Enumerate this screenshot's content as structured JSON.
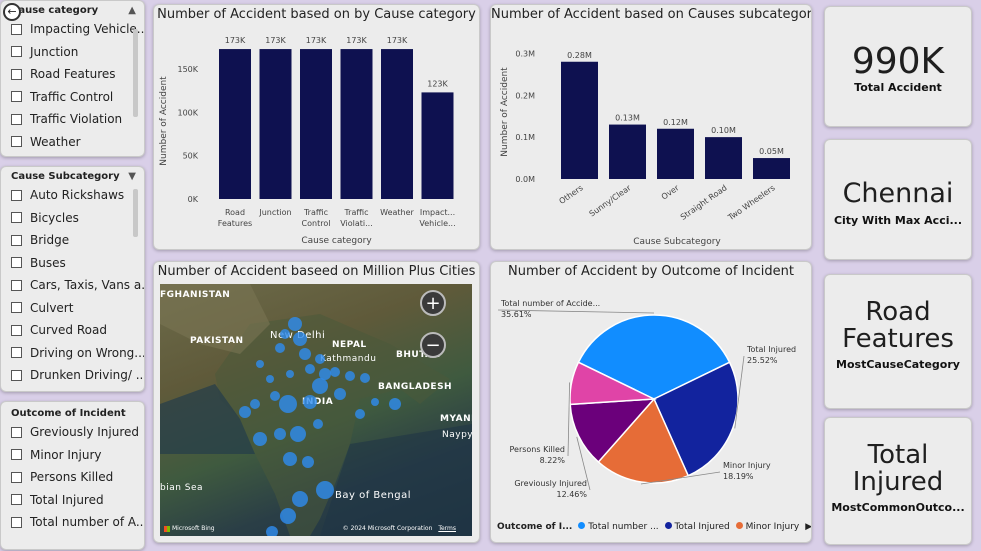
{
  "slicers": {
    "cause_category": {
      "title": "Cause category",
      "items": [
        "Impacting Vehicle...",
        "Junction",
        "Road Features",
        "Traffic Control",
        "Traffic Violation",
        "Weather"
      ]
    },
    "cause_subcategory": {
      "title": "Cause Subcategory",
      "items": [
        "Auto Rickshaws",
        "Bicycles",
        "Bridge",
        "Buses",
        "Cars, Taxis, Vans a...",
        "Culvert",
        "Curved Road",
        "Driving on Wrong...",
        "Drunken Driving/ ..."
      ]
    },
    "outcome": {
      "title": "Outcome of Incident",
      "items": [
        "Greviously Injured",
        "Minor Injury",
        "Persons Killed",
        "Total Injured",
        "Total number of A..."
      ]
    }
  },
  "bar1": {
    "title": "Number of Accident based on by Cause category",
    "xlabel": "Cause category",
    "ylabel": "Number of Accident",
    "yticks": [
      "0K",
      "50K",
      "100K",
      "150K"
    ],
    "cat_lines": [
      [
        "Road",
        "Features"
      ],
      [
        "Junction"
      ],
      [
        "Traffic",
        "Control"
      ],
      [
        "Traffic",
        "Violati..."
      ],
      [
        "Weather"
      ],
      [
        "Impact...",
        "Vehicle..."
      ]
    ]
  },
  "bar2": {
    "title": "Number of Accident based on Causes subcategory",
    "xlabel": "Cause Subcategory",
    "ylabel": "Number of Accident",
    "yticks": [
      "0.0M",
      "0.1M",
      "0.2M",
      "0.3M"
    ]
  },
  "map": {
    "title": "Number of Accident baseed on Million Plus Cities",
    "labels": {
      "afghanistan": "FGHANISTAN",
      "pakistan": "PAKISTAN",
      "delhi": "New Delhi",
      "nepal": "NEPAL",
      "kathmandu": "Kathmandu",
      "bhutan": "BHUTAN",
      "bangladesh": "BANGLADESH",
      "india": "INDIA",
      "myanmar": "MYANM",
      "naypyidaw": "Naypyid",
      "arabian": "bian Sea",
      "bengal": "Bay of Bengal"
    },
    "zoom_in": "+",
    "zoom_out": "−",
    "brand": "Microsoft Bing",
    "copyright": "© 2024 Microsoft Corporation",
    "terms": "Terms"
  },
  "pie": {
    "title": "Number of Accident by Outcome of Incident",
    "legend_title": "Outcome of I...",
    "legend_items": [
      "Total number ...",
      "Total Injured",
      "Minor Injury"
    ],
    "legend_more": "▶",
    "label_lines": {
      "total_number": [
        "Total number of Accide...",
        "35.61%"
      ],
      "total_injured": [
        "Total Injured",
        "25.52%"
      ],
      "minor": [
        "Minor Injury",
        "18.19%"
      ],
      "grevious": [
        "Greviously Injured",
        "12.46%"
      ],
      "killed": [
        "Persons Killed",
        "8.22%"
      ]
    }
  },
  "kpis": [
    {
      "value": "990K",
      "label": "Total Accident"
    },
    {
      "value": "Chennai",
      "label": "City With Max Acci..."
    },
    {
      "value": "Road Features",
      "label": "MostCauseCategory"
    },
    {
      "value": "Total Injured",
      "label": "MostCommonOutco..."
    }
  ],
  "colors": {
    "bar": "#0e1150",
    "pie_total_number": "#118dff",
    "pie_total_injured": "#12239e",
    "pie_minor": "#e66c37",
    "pie_grevious": "#6b007b",
    "pie_killed": "#e044a7",
    "map_bubble": "#2e8cf0"
  },
  "chart_data": [
    {
      "type": "bar",
      "title": "Number of Accident based on by Cause category",
      "categories": [
        "Road Features",
        "Junction",
        "Traffic Control",
        "Traffic Violati...",
        "Weather",
        "Impact... Vehicle..."
      ],
      "values": [
        173000,
        173000,
        173000,
        173000,
        173000,
        123000
      ],
      "data_labels": [
        "173K",
        "173K",
        "173K",
        "173K",
        "173K",
        "123K"
      ],
      "xlabel": "Cause category",
      "ylabel": "Number of Accident",
      "ylim": [
        0,
        180000
      ]
    },
    {
      "type": "bar",
      "title": "Number of Accident based on Causes subcategory",
      "categories": [
        "Others",
        "Sunny/Clear",
        "Over",
        "Straight Road",
        "Two Wheelers"
      ],
      "values": [
        0.28,
        0.13,
        0.12,
        0.1,
        0.05
      ],
      "data_labels": [
        "0.28M",
        "0.13M",
        "0.12M",
        "0.10M",
        "0.05M"
      ],
      "xlabel": "Cause Subcategory",
      "ylabel": "Number of Accident",
      "ylim": [
        0,
        0.32
      ]
    },
    {
      "type": "pie",
      "title": "Number of Accident by Outcome of Incident",
      "categories": [
        "Total number of Accidents",
        "Total Injured",
        "Minor Injury",
        "Greviously Injured",
        "Persons Killed"
      ],
      "values": [
        35.61,
        25.52,
        18.19,
        12.46,
        8.22
      ]
    }
  ]
}
